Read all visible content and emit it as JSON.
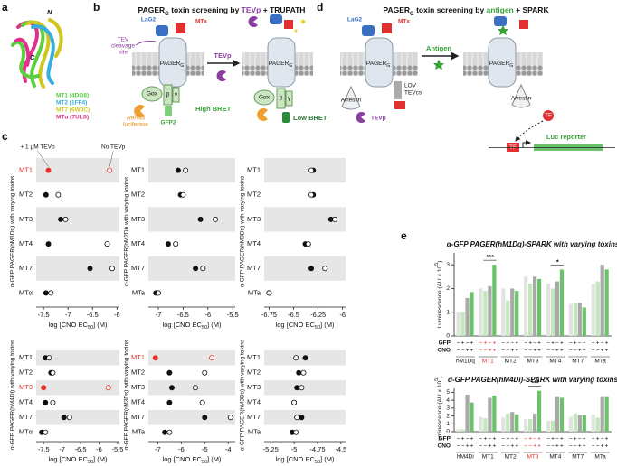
{
  "panel_a": {
    "letter": "a",
    "n_label": "N",
    "c_label": "C",
    "legend": [
      {
        "text": "MT1 (4DO8)",
        "color": "#5ccf3c"
      },
      {
        "text": "MT2 (1FF4)",
        "color": "#36aee0"
      },
      {
        "text": "MT7 (6WJC)",
        "color": "#cfc71a"
      },
      {
        "text": "MTα (7ULS)",
        "color": "#e0318e"
      }
    ]
  },
  "panel_b": {
    "letter": "b",
    "title": [
      "PAGER",
      "G",
      " toxin screening by ",
      "TEVp",
      " + TRUPATH"
    ],
    "lag2": "LaG2",
    "mtx": "MTx",
    "tev_site": [
      "TEV",
      "cleavage",
      "site"
    ],
    "pager": [
      "PAGER",
      "G"
    ],
    "gax": "Gαx",
    "beta": "β",
    "gamma": "γ",
    "high_bret": "High BRET",
    "renilla": [
      "Renilla",
      "luciferase"
    ],
    "gfp2": "GFP2",
    "tevp": "TEVp",
    "low_bret": "Low BRET"
  },
  "panel_d": {
    "letter": "d",
    "title": [
      "PAGER",
      "G",
      " toxin screening by ",
      "antigen",
      " + SPARK"
    ],
    "lag2": "LaG2",
    "mtx": "MTx",
    "pager": [
      "PAGER",
      "G"
    ],
    "antigen": "Antigen",
    "arrestin": "Arrestin",
    "lov": [
      "LOV",
      "TEVcs"
    ],
    "tevp": "TEVp",
    "tf": "TF",
    "luc": "Luc reporter"
  },
  "panel_c": {
    "letter": "c",
    "charts": [
      {
        "type": "dot",
        "ylabel": "α-GFP PAGER(hM1Dq) with varying toxins",
        "xlabel": [
          "log [CNO EC",
          "50",
          "] (M)"
        ],
        "categories": [
          "MT1",
          "MT2",
          "MT3",
          "MT4",
          "MT7",
          "MTα"
        ],
        "xlim": [
          -7.65,
          -5.95
        ],
        "xticks": [
          -7.5,
          -7.0,
          -6.5,
          -6.0
        ],
        "shaded_rows": [
          0,
          2,
          4
        ],
        "highlight": 0,
        "highlight_color": "#e8302a",
        "series": [
          {
            "name": "+ 1 µM TEVp",
            "style": "filled",
            "values": [
              -7.4,
              -7.45,
              -7.15,
              -7.4,
              -6.55,
              -7.45
            ]
          },
          {
            "name": "No TEVp",
            "style": "open",
            "values": [
              -6.15,
              -7.2,
              -7.05,
              -6.2,
              -6.1,
              -7.35
            ]
          }
        ]
      },
      {
        "type": "dot",
        "ylabel": "α-GFP PAGER(hM2Di) with varying toxins",
        "xlabel": [
          "log [CNO EC",
          "50",
          "] (M)"
        ],
        "categories": [
          "MT1",
          "MT2",
          "MT3",
          "MT4",
          "MT7",
          "MTa"
        ],
        "xlim": [
          -7.2,
          -5.45
        ],
        "xticks": [
          -7.0,
          -6.5,
          -6.0,
          -5.5
        ],
        "shaded_rows": [
          0,
          2,
          4
        ],
        "series": [
          {
            "name": "+ 1 µM TEVp",
            "style": "filled",
            "values": [
              -6.6,
              -6.55,
              -6.15,
              -6.8,
              -6.25,
              -7.05
            ]
          },
          {
            "name": "No TEVp",
            "style": "open",
            "values": [
              -6.45,
              -6.5,
              -5.85,
              -6.65,
              -6.1,
              -7.0
            ]
          }
        ]
      },
      {
        "type": "dot",
        "ylabel": "α-GFP PAGER(hM3Dq) with varying toxins",
        "xlabel": [
          "log [CNO EC",
          "50",
          "] (M)"
        ],
        "categories": [
          "MT1",
          "MT2",
          "MT3",
          "MT4",
          "MT7",
          "MTa"
        ],
        "xlim": [
          -6.8,
          -5.97
        ],
        "xticks": [
          -6.75,
          -6.5,
          -6.25,
          -6.0
        ],
        "shaded_rows": [
          0,
          2,
          4
        ],
        "series": [
          {
            "name": "+ 1 µM TEVp",
            "style": "filled",
            "values": [
              -6.3,
              -6.3,
              -6.12,
              -6.38,
              -6.32,
              -6.75
            ]
          },
          {
            "name": "No TEVp",
            "style": "open",
            "values": [
              -6.32,
              -6.32,
              -6.08,
              -6.35,
              -6.18,
              -6.75
            ]
          }
        ]
      },
      {
        "type": "dot",
        "ylabel": "α-GFP PAGER(hM4Di) with varying toxins",
        "xlabel": [
          "log [CNO EC",
          "50",
          "] (M)"
        ],
        "categories": [
          "MT1",
          "MT2",
          "MT3",
          "MT4",
          "MT7",
          "MTα"
        ],
        "xlim": [
          -7.7,
          -5.45
        ],
        "xticks": [
          -7.5,
          -7.0,
          -6.5,
          -6.0,
          -5.5
        ],
        "shaded_rows": [
          0,
          2,
          4
        ],
        "highlight": 2,
        "highlight_color": "#e8302a",
        "series": [
          {
            "name": "+ 1 µM TEVp",
            "style": "filled",
            "values": [
              -7.45,
              -7.3,
              -7.5,
              -7.45,
              -6.95,
              -7.55
            ]
          },
          {
            "name": "No TEVp",
            "style": "open",
            "values": [
              -7.35,
              -7.25,
              -5.75,
              -7.25,
              -6.8,
              -7.45
            ]
          }
        ]
      },
      {
        "type": "dot",
        "ylabel": "α-GFP PAGER(rM3Ds) with varying toxins",
        "xlabel": [
          "log [CNO EC",
          "50",
          "] (M)"
        ],
        "categories": [
          "MT1",
          "MT2",
          "MT3",
          "MT4",
          "MT7",
          "MTa"
        ],
        "xlim": [
          -7.4,
          -3.7
        ],
        "xticks": [
          -7,
          -6,
          -5,
          -4
        ],
        "shaded_rows": [
          0,
          2,
          4
        ],
        "highlight": 0,
        "highlight_color": "#e8302a",
        "series": [
          {
            "name": "+ 1 µM TEVp",
            "style": "filled",
            "values": [
              -7.1,
              -6.5,
              -6.4,
              -6.5,
              -5.0,
              -6.7
            ]
          },
          {
            "name": "No TEVp",
            "style": "open",
            "values": [
              -4.7,
              -5.0,
              -5.4,
              -5.1,
              -3.9,
              -6.5
            ]
          }
        ]
      },
      {
        "type": "dot",
        "ylabel": "α-GFP PAGER(hM3Ds) with varying toxins",
        "xlabel": [
          "log [CNO EC",
          "50",
          "] (M)"
        ],
        "categories": [
          "MT1",
          "MT2",
          "MT3",
          "MT4",
          "MT7",
          "MTa"
        ],
        "xlim": [
          -5.32,
          -4.45
        ],
        "xticks": [
          -5.25,
          -5.0,
          -4.75,
          -4.5
        ],
        "shaded_rows": [
          0,
          2,
          4
        ],
        "series": [
          {
            "name": "+ 1 µM TEVp",
            "style": "filled",
            "values": [
              -4.88,
              -4.95,
              -4.97,
              -5.0,
              -4.92,
              -5.02
            ]
          },
          {
            "name": "No TEVp",
            "style": "open",
            "values": [
              -4.98,
              -4.9,
              -4.92,
              -5.0,
              -4.97,
              -4.98
            ]
          }
        ]
      }
    ]
  },
  "panel_e": {
    "letter": "e",
    "charts": [
      {
        "type": "bar",
        "title": "α-GFP PAGER(hM1Dq)-SPARK with varying toxins",
        "ylabel": [
          "Luminescence (AU × 10",
          "5",
          ")"
        ],
        "categories": [
          "hM1Dq",
          "MT1",
          "MT2",
          "MT3",
          "MT4",
          "MT7",
          "MTa"
        ],
        "ylim": [
          0,
          3.5
        ],
        "yticks": [
          0,
          1,
          2,
          3
        ],
        "highlight": 1,
        "highlight_color": "#e8302a",
        "sign_rows": [
          {
            "label": "GFP",
            "signs": [
              "−",
              "+",
              "−",
              "+"
            ]
          },
          {
            "label": "CNO",
            "signs": [
              "−",
              "−",
              "+",
              "+"
            ]
          }
        ],
        "series": [
          {
            "color": "#dfe5dd",
            "values": [
              1.0,
              2.0,
              2.0,
              2.5,
              2.2,
              1.35,
              2.2
            ]
          },
          {
            "color": "#c3e6bd",
            "values": [
              1.0,
              1.9,
              1.5,
              2.2,
              2.0,
              1.4,
              2.3
            ]
          },
          {
            "color": "#a8aaa8",
            "values": [
              1.6,
              2.1,
              2.0,
              2.5,
              2.3,
              1.4,
              3.0
            ]
          },
          {
            "color": "#6cc26a",
            "values": [
              1.85,
              3.0,
              1.9,
              2.4,
              2.8,
              1.2,
              2.8
            ]
          }
        ],
        "annotations": [
          {
            "text": "***",
            "category": 1
          },
          {
            "text": "*",
            "category": 4
          }
        ]
      },
      {
        "type": "bar",
        "title": "α-GFP PAGER(hM4Di)-SPARK with varying toxins",
        "ylabel": [
          "Luminescence (AU × 10",
          "5",
          ")"
        ],
        "categories": [
          "hM4Di",
          "MT1",
          "MT2",
          "MT3",
          "MT4",
          "MT7",
          "MTa"
        ],
        "ylim": [
          0,
          5.5
        ],
        "yticks": [
          0,
          1,
          2,
          3,
          4,
          5
        ],
        "highlight": 3,
        "highlight_color": "#e8302a",
        "sign_rows": [
          {
            "label": "GFP",
            "signs": [
              "−",
              "+",
              "−",
              "+"
            ]
          },
          {
            "label": "CNO",
            "signs": [
              "−",
              "−",
              "+",
              "+"
            ]
          }
        ],
        "series": [
          {
            "color": "#dfe5dd",
            "values": [
              0.3,
              1.9,
              1.8,
              1.6,
              1.4,
              1.9,
              2.2
            ]
          },
          {
            "color": "#c3e6bd",
            "values": [
              0.3,
              1.7,
              2.3,
              1.6,
              1.4,
              2.3,
              1.8
            ]
          },
          {
            "color": "#a8aaa8",
            "values": [
              4.7,
              4.3,
              2.5,
              2.3,
              4.4,
              2.1,
              4.4
            ]
          },
          {
            "color": "#6cc26a",
            "values": [
              3.7,
              4.6,
              2.2,
              5.2,
              4.3,
              2.1,
              4.4
            ]
          }
        ],
        "annotations": [
          {
            "text": "***",
            "category": 3
          }
        ]
      }
    ]
  }
}
